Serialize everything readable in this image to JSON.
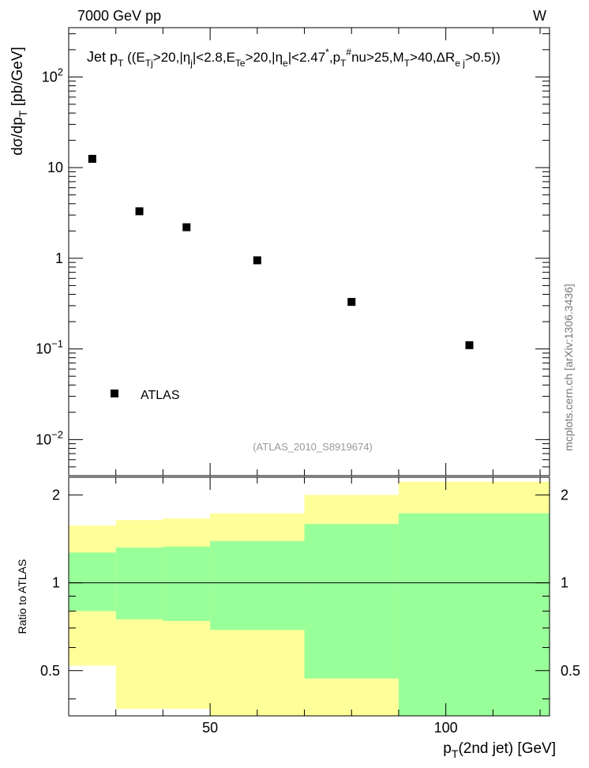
{
  "header": {
    "left_label": "7000 GeV pp",
    "right_label": "W"
  },
  "side_label": "mcplots.cern.ch [arXiv:1306.3436]",
  "chart_data": [
    {
      "type": "scatter",
      "panel": "main",
      "title": "Jet pT ((ETj>20,|ηj|<2.8,ETe>20,|ηe|<2.47,pT#nu>25,MT>40,ΔRej>0.5))",
      "ylabel": "dσ/dpT [pb/GeV]",
      "yscale": "log",
      "ylim": [
        0.004,
        350
      ],
      "xlim": [
        20,
        122
      ],
      "y_ticks": [
        {
          "value": 0.01,
          "label": "10^-2"
        },
        {
          "value": 0.1,
          "label": "10^-1"
        },
        {
          "value": 1,
          "label": "1"
        },
        {
          "value": 10,
          "label": "10"
        },
        {
          "value": 100,
          "label": "10^2"
        }
      ],
      "legend": [
        {
          "name": "ATLAS",
          "marker": "square",
          "color": "#000000"
        }
      ],
      "annotation": "(ATLAS_2010_S8919674)",
      "series": [
        {
          "name": "ATLAS",
          "x": [
            25,
            35,
            45,
            60,
            80,
            105
          ],
          "y": [
            12.5,
            3.3,
            2.2,
            0.95,
            0.33,
            0.11
          ]
        }
      ]
    },
    {
      "type": "area",
      "panel": "ratio",
      "ylabel": "Ratio to ATLAS",
      "xlabel": "pT(2nd jet) [GeV]",
      "ylim": [
        0.35,
        2.3
      ],
      "xlim": [
        20,
        122
      ],
      "x_ticks": [
        50,
        100
      ],
      "y_ticks": [
        0.5,
        1,
        2
      ],
      "reference_line": 1,
      "bins": [
        {
          "xlo": 20,
          "xhi": 30,
          "yellow": [
            0.52,
            1.57
          ],
          "green": [
            0.8,
            1.27
          ]
        },
        {
          "xlo": 30,
          "xhi": 40,
          "yellow": [
            0.37,
            1.64
          ],
          "green": [
            0.75,
            1.32
          ]
        },
        {
          "xlo": 40,
          "xhi": 50,
          "yellow": [
            0.37,
            1.66
          ],
          "green": [
            0.74,
            1.33
          ]
        },
        {
          "xlo": 50,
          "xhi": 70,
          "yellow": [
            0.35,
            1.73
          ],
          "green": [
            0.69,
            1.39
          ]
        },
        {
          "xlo": 70,
          "xhi": 90,
          "yellow": [
            0.35,
            2.0
          ],
          "green": [
            0.47,
            1.59
          ]
        },
        {
          "xlo": 90,
          "xhi": 122,
          "yellow": [
            0.35,
            2.22
          ],
          "green": [
            0.35,
            1.73
          ]
        }
      ],
      "colors": {
        "yellow": "#ffff99",
        "green": "#99ff99"
      }
    }
  ]
}
